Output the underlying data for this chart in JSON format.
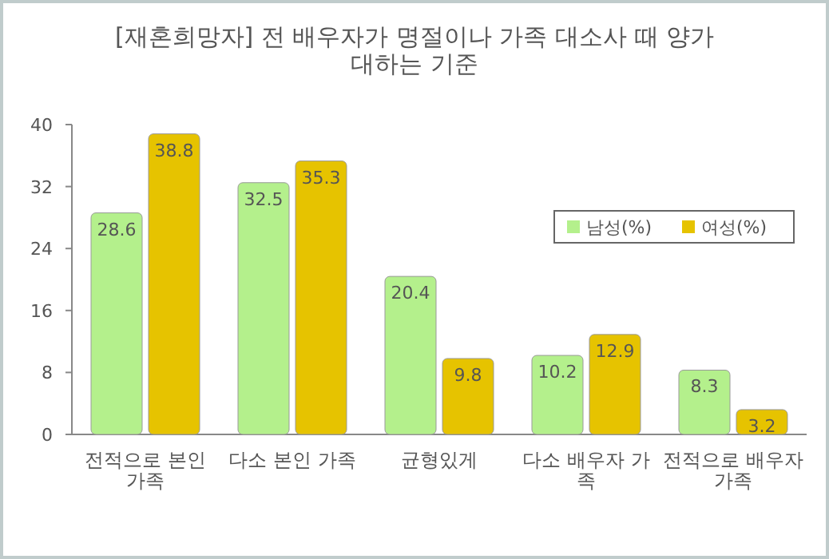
{
  "chart_data": {
    "type": "bar",
    "title": "[재혼희망자] 전 배우자가 명절이나 가족 대소사 때 양가 대하는 기준",
    "categories": [
      "전적으로 본인 가족",
      "다소 본인 가족",
      "균형있게",
      "다소 배우자 가족",
      "전적으로 배우자 가족"
    ],
    "series": [
      {
        "name": "남성(%)",
        "color": "#b4f08c",
        "values": [
          28.6,
          32.5,
          20.4,
          10.2,
          8.3
        ]
      },
      {
        "name": "여성(%)",
        "color": "#e6c300",
        "values": [
          38.8,
          35.3,
          9.8,
          12.9,
          3.2
        ]
      }
    ],
    "ylim": [
      0,
      40
    ],
    "yticks": [
      0,
      8,
      16,
      24,
      32,
      40
    ],
    "data_labels": true,
    "legend": "top right",
    "grid": false
  }
}
